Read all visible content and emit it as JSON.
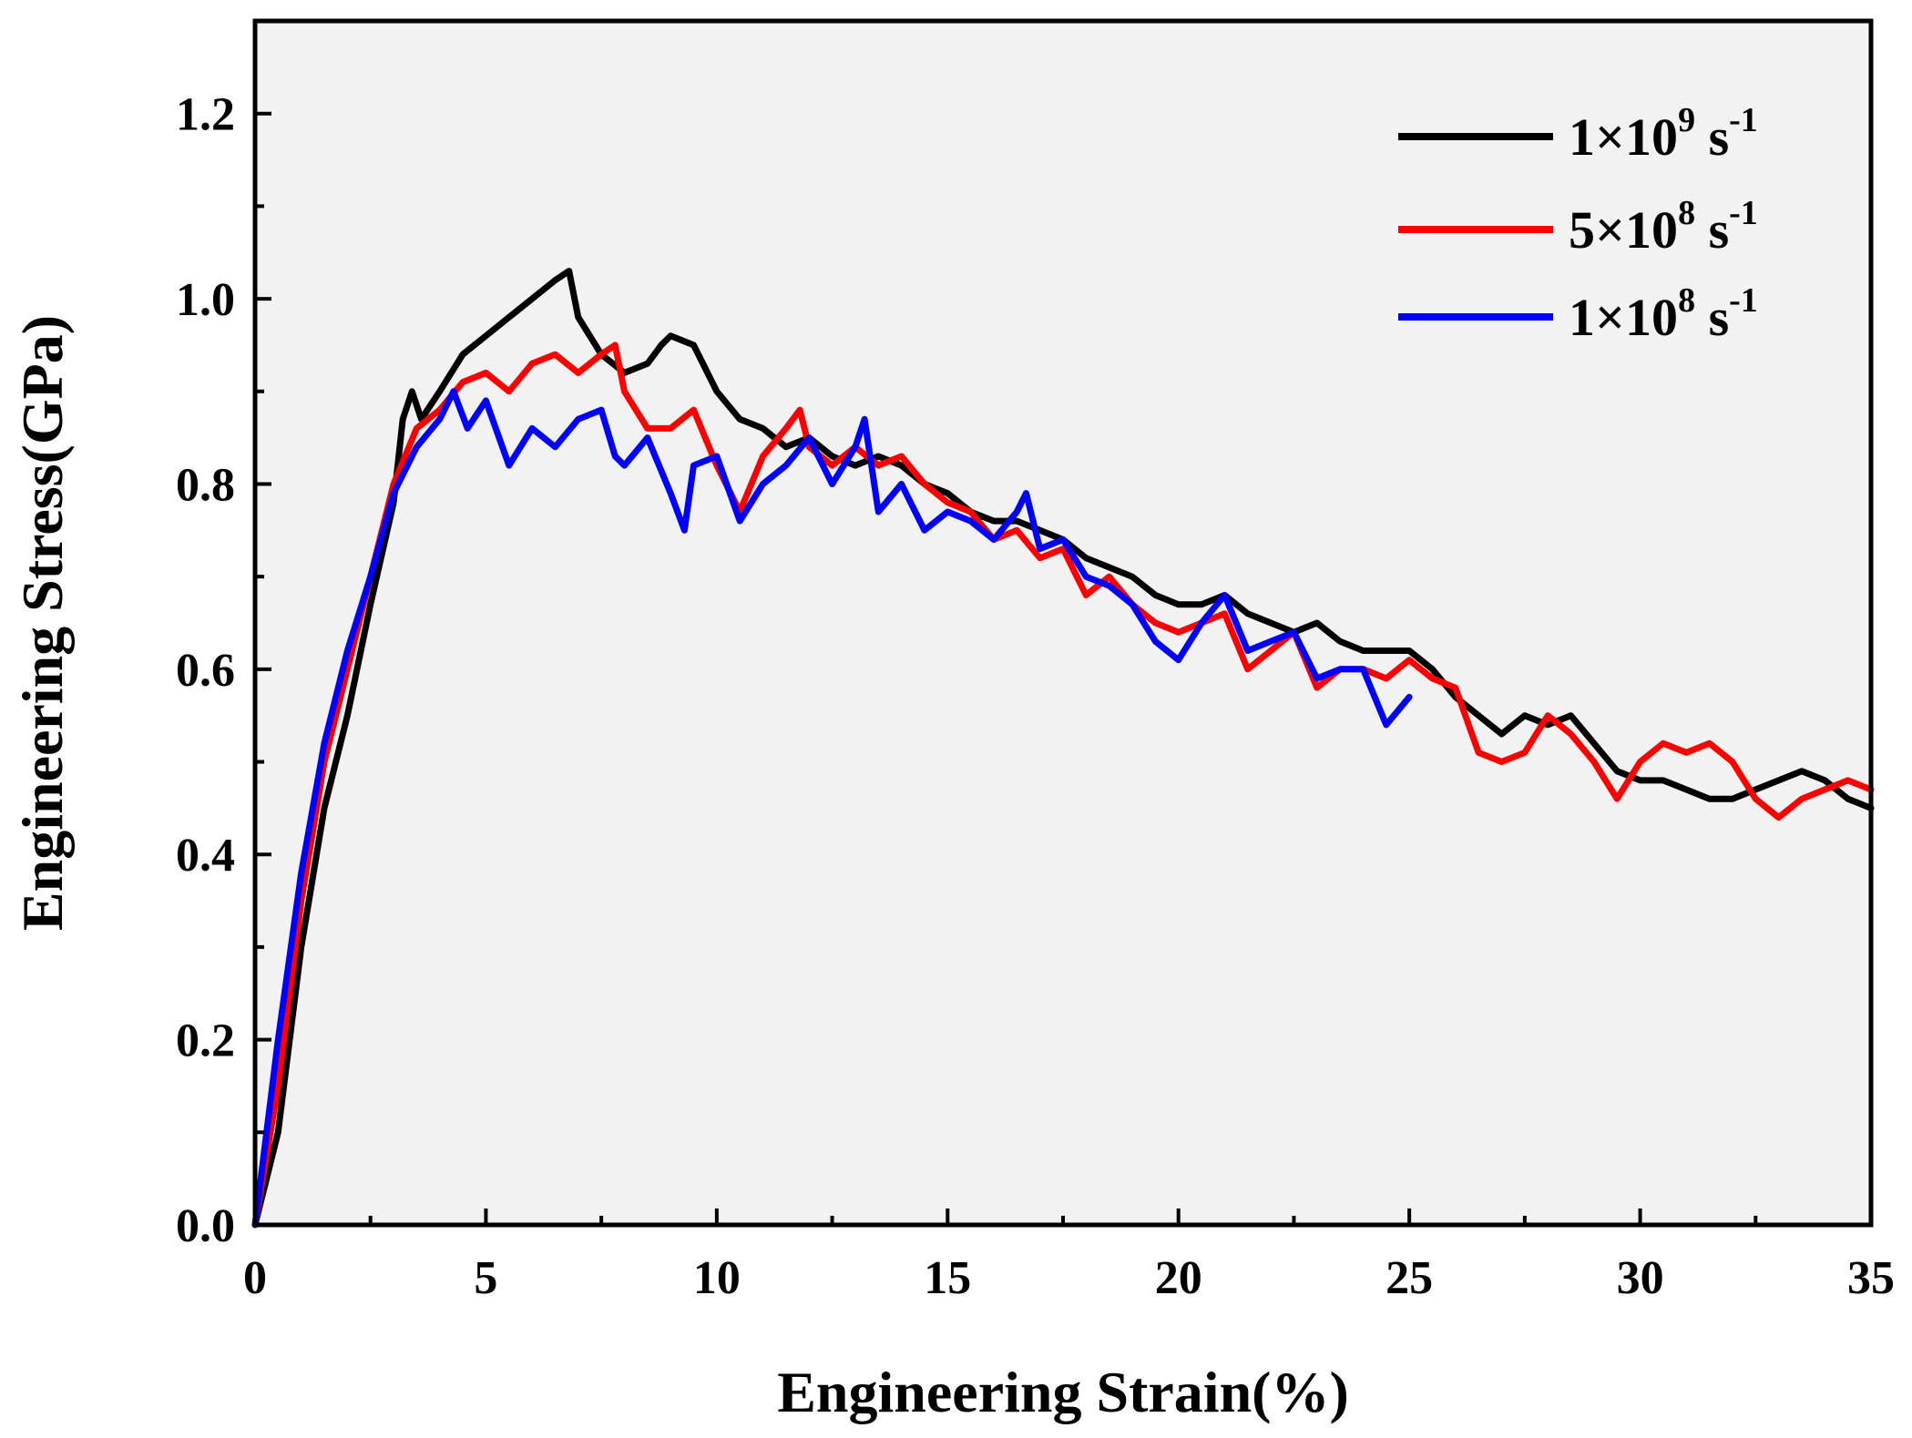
{
  "chart_data": {
    "type": "line",
    "xlabel": "Engineering Strain(%)",
    "ylabel": "Engineering Stress(GPa)",
    "xlim": [
      0,
      35
    ],
    "ylim": [
      0,
      1.3
    ],
    "x_ticks": [
      "0",
      "5",
      "10",
      "15",
      "20",
      "25",
      "30",
      "35"
    ],
    "y_ticks": [
      "0.0",
      "0.2",
      "0.4",
      "0.6",
      "0.8",
      "1.0",
      "1.2"
    ],
    "x_tick_values": [
      0,
      5,
      10,
      15,
      20,
      25,
      30,
      35
    ],
    "y_tick_values": [
      0.0,
      0.2,
      0.4,
      0.6,
      0.8,
      1.0,
      1.2
    ],
    "grid": false,
    "legend_position": "top-right",
    "series": [
      {
        "name": "1×10^9 s^-1",
        "legend": {
          "base": "1×10",
          "exp": "9",
          "unit": " s",
          "unit_exp": "-1"
        },
        "color": "#000000",
        "x": [
          0,
          0.5,
          1.0,
          1.5,
          2.0,
          2.5,
          3.0,
          3.2,
          3.4,
          3.6,
          4.0,
          4.5,
          5.0,
          5.5,
          6.0,
          6.5,
          6.8,
          7.0,
          7.5,
          8.0,
          8.5,
          8.8,
          9.0,
          9.5,
          10.0,
          10.5,
          11.0,
          11.5,
          12.0,
          12.5,
          13.0,
          13.5,
          14.0,
          14.5,
          15.0,
          15.5,
          16.0,
          16.5,
          17.0,
          17.5,
          18.0,
          18.5,
          19.0,
          19.5,
          20.0,
          20.5,
          21.0,
          21.5,
          22.0,
          22.5,
          23.0,
          23.5,
          24.0,
          24.5,
          25.0,
          25.5,
          26.0,
          26.5,
          27.0,
          27.5,
          28.0,
          28.5,
          29.0,
          29.5,
          30.0,
          30.5,
          31.0,
          31.5,
          32.0,
          32.5,
          33.0,
          33.5,
          34.0,
          34.5,
          35.0
        ],
        "y": [
          0.0,
          0.1,
          0.3,
          0.45,
          0.55,
          0.67,
          0.78,
          0.87,
          0.9,
          0.87,
          0.9,
          0.94,
          0.96,
          0.98,
          1.0,
          1.02,
          1.03,
          0.98,
          0.94,
          0.92,
          0.93,
          0.95,
          0.96,
          0.95,
          0.9,
          0.87,
          0.86,
          0.84,
          0.85,
          0.83,
          0.82,
          0.83,
          0.82,
          0.8,
          0.79,
          0.77,
          0.76,
          0.76,
          0.75,
          0.74,
          0.72,
          0.71,
          0.7,
          0.68,
          0.67,
          0.67,
          0.68,
          0.66,
          0.65,
          0.64,
          0.65,
          0.63,
          0.62,
          0.62,
          0.62,
          0.6,
          0.57,
          0.55,
          0.53,
          0.55,
          0.54,
          0.55,
          0.52,
          0.49,
          0.48,
          0.48,
          0.47,
          0.46,
          0.46,
          0.47,
          0.48,
          0.49,
          0.48,
          0.46,
          0.45
        ]
      },
      {
        "name": "5×10^8 s^-1",
        "legend": {
          "base": "5×10",
          "exp": "8",
          "unit": " s",
          "unit_exp": "-1"
        },
        "color": "#ff0000",
        "x": [
          0,
          0.5,
          1.0,
          1.5,
          2.0,
          2.5,
          3.0,
          3.5,
          4.0,
          4.5,
          5.0,
          5.5,
          6.0,
          6.5,
          7.0,
          7.5,
          7.8,
          8.0,
          8.5,
          9.0,
          9.5,
          10.0,
          10.5,
          11.0,
          11.5,
          11.8,
          12.0,
          12.5,
          13.0,
          13.5,
          14.0,
          14.5,
          15.0,
          15.5,
          16.0,
          16.5,
          17.0,
          17.5,
          18.0,
          18.5,
          19.0,
          19.5,
          20.0,
          20.5,
          21.0,
          21.5,
          22.0,
          22.5,
          23.0,
          23.5,
          24.0,
          24.5,
          25.0,
          25.5,
          26.0,
          26.5,
          27.0,
          27.5,
          28.0,
          28.5,
          29.0,
          29.5,
          30.0,
          30.5,
          31.0,
          31.5,
          32.0,
          32.5,
          33.0,
          33.5,
          34.0,
          34.5,
          35.0
        ],
        "y": [
          0.0,
          0.15,
          0.35,
          0.5,
          0.6,
          0.7,
          0.8,
          0.86,
          0.88,
          0.91,
          0.92,
          0.9,
          0.93,
          0.94,
          0.92,
          0.94,
          0.95,
          0.9,
          0.86,
          0.86,
          0.88,
          0.82,
          0.77,
          0.83,
          0.86,
          0.88,
          0.84,
          0.82,
          0.84,
          0.82,
          0.83,
          0.8,
          0.78,
          0.77,
          0.74,
          0.75,
          0.72,
          0.73,
          0.68,
          0.7,
          0.67,
          0.65,
          0.64,
          0.65,
          0.66,
          0.6,
          0.62,
          0.64,
          0.58,
          0.6,
          0.6,
          0.59,
          0.61,
          0.59,
          0.58,
          0.51,
          0.5,
          0.51,
          0.55,
          0.53,
          0.5,
          0.46,
          0.5,
          0.52,
          0.51,
          0.52,
          0.5,
          0.46,
          0.44,
          0.46,
          0.47,
          0.48,
          0.47
        ]
      },
      {
        "name": "1×10^8 s^-1",
        "legend": {
          "base": "1×10",
          "exp": "8",
          "unit": " s",
          "unit_exp": "-1"
        },
        "color": "#0000ff",
        "x": [
          0,
          0.5,
          1.0,
          1.5,
          2.0,
          2.5,
          3.0,
          3.5,
          4.0,
          4.3,
          4.6,
          5.0,
          5.5,
          6.0,
          6.5,
          7.0,
          7.5,
          7.8,
          8.0,
          8.5,
          9.0,
          9.3,
          9.5,
          10.0,
          10.5,
          11.0,
          11.5,
          12.0,
          12.5,
          13.0,
          13.2,
          13.5,
          14.0,
          14.5,
          15.0,
          15.5,
          16.0,
          16.5,
          16.7,
          17.0,
          17.5,
          18.0,
          18.5,
          19.0,
          19.5,
          20.0,
          20.5,
          21.0,
          21.5,
          22.0,
          22.5,
          23.0,
          23.5,
          24.0,
          24.5,
          25.0
        ],
        "y": [
          0.0,
          0.2,
          0.38,
          0.52,
          0.62,
          0.7,
          0.79,
          0.84,
          0.87,
          0.9,
          0.86,
          0.89,
          0.82,
          0.86,
          0.84,
          0.87,
          0.88,
          0.83,
          0.82,
          0.85,
          0.79,
          0.75,
          0.82,
          0.83,
          0.76,
          0.8,
          0.82,
          0.85,
          0.8,
          0.84,
          0.87,
          0.77,
          0.8,
          0.75,
          0.77,
          0.76,
          0.74,
          0.77,
          0.79,
          0.73,
          0.74,
          0.7,
          0.69,
          0.67,
          0.63,
          0.61,
          0.65,
          0.68,
          0.62,
          0.63,
          0.64,
          0.59,
          0.6,
          0.6,
          0.54,
          0.57
        ]
      }
    ]
  }
}
